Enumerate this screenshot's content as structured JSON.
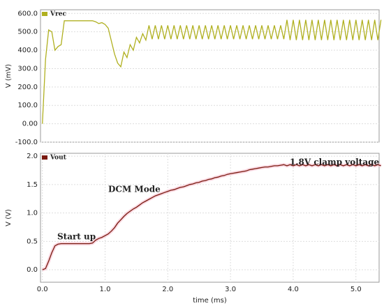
{
  "chart_data": [
    {
      "type": "line",
      "ylabel": "V (mV)",
      "x": [
        0,
        0.05,
        0.1,
        0.15,
        0.2,
        0.25,
        0.3,
        0.35,
        0.4,
        0.45,
        0.5,
        0.55,
        0.6,
        0.65,
        0.7,
        0.75,
        0.8,
        0.85,
        0.9,
        0.95,
        1,
        1.05,
        1.1,
        1.15,
        1.2,
        1.25,
        1.3,
        1.35,
        1.4,
        1.45,
        1.5,
        1.55,
        1.6,
        1.65,
        1.7,
        1.75,
        1.8,
        1.85,
        1.9,
        1.95,
        2,
        2.05,
        2.1,
        2.15,
        2.2,
        2.25,
        2.3,
        2.35,
        2.4,
        2.45,
        2.5,
        2.55,
        2.6,
        2.65,
        2.7,
        2.75,
        2.8,
        2.85,
        2.9,
        2.95,
        3,
        3.05,
        3.1,
        3.15,
        3.2,
        3.25,
        3.3,
        3.35,
        3.4,
        3.45,
        3.5,
        3.55,
        3.6,
        3.65,
        3.7,
        3.75,
        3.8,
        3.85,
        3.9,
        3.95,
        4,
        4.05,
        4.1,
        4.15,
        4.2,
        4.25,
        4.3,
        4.35,
        4.4,
        4.45,
        4.5,
        4.55,
        4.6,
        4.65,
        4.7,
        4.75,
        4.8,
        4.85,
        4.9,
        4.95,
        5,
        5.05,
        5.1,
        5.15,
        5.2,
        5.25,
        5.3,
        5.35,
        5.4
      ],
      "series": [
        {
          "name": "Vrec",
          "color": "#b0b020",
          "values": [
            0,
            350,
            510,
            500,
            400,
            420,
            430,
            560,
            560,
            560,
            560,
            560,
            560,
            560,
            560,
            560,
            560,
            555,
            545,
            550,
            540,
            520,
            450,
            380,
            330,
            310,
            390,
            360,
            430,
            400,
            470,
            440,
            490,
            455,
            535,
            460,
            535,
            460,
            535,
            460,
            535,
            460,
            535,
            460,
            535,
            460,
            535,
            460,
            535,
            460,
            535,
            460,
            535,
            460,
            535,
            460,
            535,
            460,
            535,
            460,
            535,
            460,
            535,
            460,
            535,
            460,
            535,
            460,
            535,
            460,
            535,
            460,
            535,
            460,
            535,
            460,
            535,
            460,
            565,
            455,
            565,
            455,
            565,
            455,
            565,
            455,
            565,
            455,
            565,
            455,
            565,
            455,
            565,
            455,
            565,
            455,
            565,
            455,
            565,
            455,
            565,
            455,
            565,
            455,
            565,
            455,
            565,
            455,
            565
          ]
        }
      ],
      "xlim": [
        -0.03,
        5.37
      ],
      "ylim": [
        -100,
        620
      ],
      "yticks": [
        {
          "value": -100,
          "label": "-100.0"
        },
        {
          "value": 0,
          "label": "0.00"
        },
        {
          "value": 100,
          "label": "100.0"
        },
        {
          "value": 200,
          "label": "200.0"
        },
        {
          "value": 300,
          "label": "300.0"
        },
        {
          "value": 400,
          "label": "400.0"
        },
        {
          "value": 500,
          "label": "500.0"
        },
        {
          "value": 600,
          "label": "600.0"
        }
      ],
      "grid": true
    },
    {
      "type": "line",
      "ylabel": "V (V)",
      "xlabel": "time (ms)",
      "x": [
        0,
        0.05,
        0.1,
        0.15,
        0.2,
        0.25,
        0.3,
        0.35,
        0.4,
        0.45,
        0.5,
        0.55,
        0.6,
        0.65,
        0.7,
        0.75,
        0.8,
        0.85,
        0.9,
        0.95,
        1,
        1.05,
        1.1,
        1.15,
        1.2,
        1.25,
        1.3,
        1.35,
        1.4,
        1.45,
        1.5,
        1.55,
        1.6,
        1.65,
        1.7,
        1.75,
        1.8,
        1.85,
        1.9,
        1.95,
        2,
        2.05,
        2.1,
        2.15,
        2.2,
        2.25,
        2.3,
        2.35,
        2.4,
        2.45,
        2.5,
        2.55,
        2.6,
        2.65,
        2.7,
        2.75,
        2.8,
        2.85,
        2.9,
        2.95,
        3,
        3.05,
        3.1,
        3.15,
        3.2,
        3.25,
        3.3,
        3.35,
        3.4,
        3.45,
        3.5,
        3.55,
        3.6,
        3.65,
        3.7,
        3.75,
        3.8,
        3.85,
        3.9,
        3.95,
        4,
        4.05,
        4.1,
        4.15,
        4.2,
        4.25,
        4.3,
        4.35,
        4.4,
        4.45,
        4.5,
        4.55,
        4.6,
        4.65,
        4.7,
        4.75,
        4.8,
        4.85,
        4.9,
        4.95,
        5,
        5.05,
        5.1,
        5.15,
        5.2,
        5.25,
        5.3,
        5.35,
        5.4
      ],
      "series": [
        {
          "name": "Vout",
          "color": "#7a1a10",
          "values": [
            0,
            0.02,
            0.15,
            0.3,
            0.42,
            0.45,
            0.46,
            0.46,
            0.46,
            0.46,
            0.46,
            0.46,
            0.46,
            0.46,
            0.46,
            0.46,
            0.47,
            0.52,
            0.55,
            0.57,
            0.6,
            0.63,
            0.68,
            0.74,
            0.82,
            0.88,
            0.94,
            0.99,
            1.03,
            1.07,
            1.1,
            1.14,
            1.18,
            1.21,
            1.24,
            1.27,
            1.3,
            1.32,
            1.34,
            1.36,
            1.38,
            1.4,
            1.41,
            1.43,
            1.45,
            1.46,
            1.48,
            1.5,
            1.51,
            1.53,
            1.54,
            1.56,
            1.57,
            1.59,
            1.6,
            1.62,
            1.63,
            1.65,
            1.66,
            1.68,
            1.69,
            1.7,
            1.71,
            1.72,
            1.73,
            1.74,
            1.76,
            1.77,
            1.78,
            1.79,
            1.8,
            1.81,
            1.81,
            1.82,
            1.83,
            1.83,
            1.84,
            1.85,
            1.83,
            1.85,
            1.83,
            1.85,
            1.83,
            1.85,
            1.83,
            1.85,
            1.83,
            1.85,
            1.83,
            1.85,
            1.83,
            1.85,
            1.83,
            1.85,
            1.83,
            1.85,
            1.83,
            1.85,
            1.83,
            1.85,
            1.83,
            1.85,
            1.83,
            1.85,
            1.83,
            1.85,
            1.83,
            1.85,
            1.83
          ]
        }
      ],
      "xlim": [
        -0.03,
        5.37
      ],
      "ylim": [
        -0.22,
        2.05
      ],
      "xticks": [
        {
          "value": 0,
          "label": "0.0"
        },
        {
          "value": 1,
          "label": "1.0"
        },
        {
          "value": 2,
          "label": "2.0"
        },
        {
          "value": 3,
          "label": "3.0"
        },
        {
          "value": 4,
          "label": "4.0"
        },
        {
          "value": 5,
          "label": "5.0"
        }
      ],
      "yticks": [
        {
          "value": 0,
          "label": "0.0"
        },
        {
          "value": 0.5,
          "label": "0.5"
        },
        {
          "value": 1,
          "label": "1.0"
        },
        {
          "value": 1.5,
          "label": "1.5"
        },
        {
          "value": 2,
          "label": "2.0"
        }
      ],
      "grid": true,
      "annotations": [
        "Start up",
        "DCM Mode",
        "1.8V clamp voltage"
      ]
    }
  ]
}
